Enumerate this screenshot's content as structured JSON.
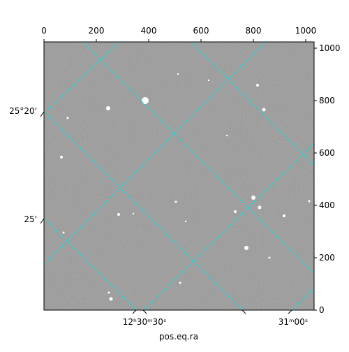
{
  "chart_data": {
    "type": "image",
    "xlabel": "pos.eq.ra",
    "xlim": [
      0,
      1032
    ],
    "xticks": [
      0,
      200,
      400,
      600,
      800,
      1000
    ],
    "ylim": [
      0,
      1024
    ],
    "yticks": [
      0,
      200,
      400,
      600,
      800,
      1000
    ],
    "ra_tick_labels": [
      "12ʰ30ᵐ30ˢ",
      "31ᵐ00ˢ"
    ],
    "dec_tick_labels": [
      "25°20'",
      "25'"
    ],
    "grid_color": "#00e5e5"
  }
}
